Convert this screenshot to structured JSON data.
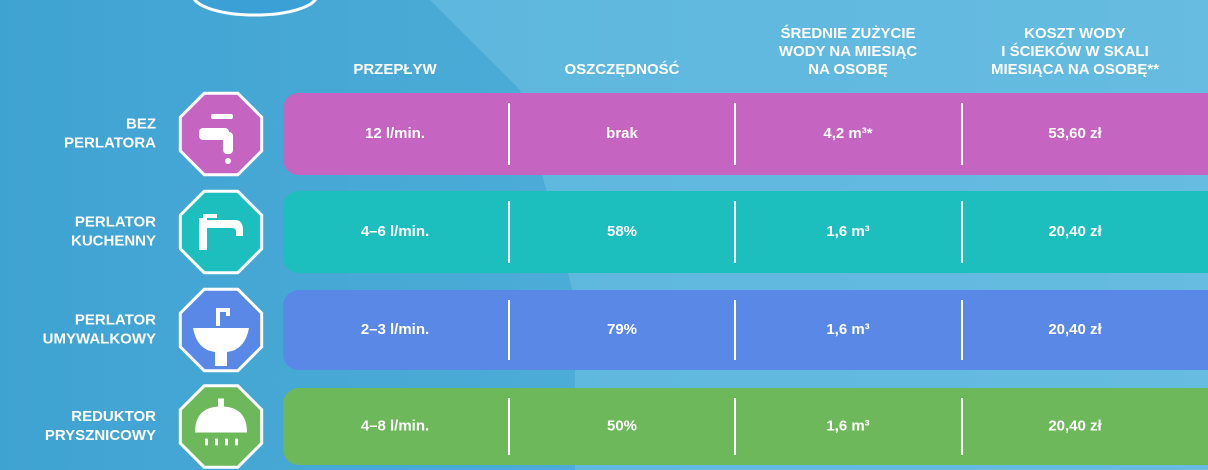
{
  "header": {
    "columns": [
      {
        "lines": [
          "PRZEPŁYW"
        ]
      },
      {
        "lines": [
          "OSZCZĘDNOŚĆ"
        ]
      },
      {
        "lines": [
          "ŚREDNIE ZUŻYCIE",
          "WODY NA MIESIĄC",
          "NA OSOBĘ"
        ]
      },
      {
        "lines": [
          "KOSZT WODY",
          "I ŚCIEKÓW W SKALI",
          "MIESIĄCA NA OSOBĘ**"
        ]
      }
    ]
  },
  "table": {
    "rows": [
      {
        "label": [
          "BEZ",
          "PERLATORA"
        ],
        "color": "#c564c1",
        "cells": [
          "12 l/min.",
          "brak",
          "4,2 m³*",
          "53,60 zł"
        ]
      },
      {
        "label": [
          "PERLATOR",
          "KUCHENNY"
        ],
        "color": "#1cbfbe",
        "cells": [
          "4–6 l/min.",
          "58%",
          "1,6 m³",
          "20,40 zł"
        ]
      },
      {
        "label": [
          "PERLATOR",
          "UMYWALKOWY"
        ],
        "color": "#5a88e6",
        "cells": [
          "2–3 l/min.",
          "79%",
          "1,6 m³",
          "20,40 zł"
        ]
      },
      {
        "label": [
          "REDUKTOR",
          "PRYSZNICOWY"
        ],
        "color": "#6db85a",
        "cells": [
          "4–8 l/min.",
          "50%",
          "1,6 m³",
          "20,40 zł"
        ]
      }
    ]
  }
}
